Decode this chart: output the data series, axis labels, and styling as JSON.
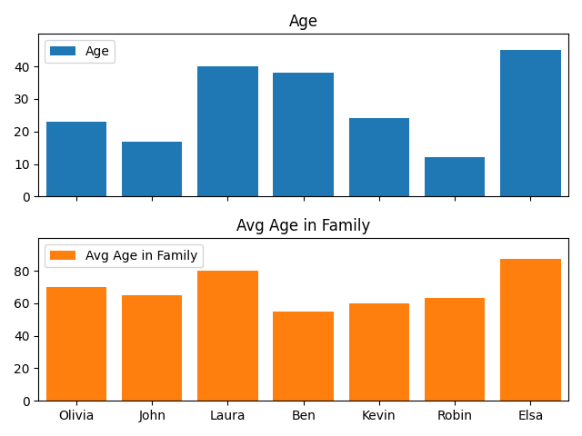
{
  "names": [
    "Olivia",
    "John",
    "Laura",
    "Ben",
    "Kevin",
    "Robin",
    "Elsa"
  ],
  "age": [
    23,
    17,
    40,
    38,
    24,
    12,
    45
  ],
  "avg_age_family": [
    70,
    65,
    80,
    55,
    60,
    63,
    87
  ],
  "age_color": "#1f77b4",
  "avg_age_color": "#ff7f0e",
  "title_age": "Age",
  "title_avg": "Avg Age in Family",
  "legend_age": "Age",
  "legend_avg": "Avg Age in Family",
  "ylim_age": [
    0,
    50
  ],
  "ylim_avg": [
    0,
    100
  ],
  "yticks_age": [
    0,
    10,
    20,
    30,
    40
  ],
  "yticks_avg": [
    0,
    20,
    40,
    60,
    80
  ],
  "bar_width": 0.8
}
